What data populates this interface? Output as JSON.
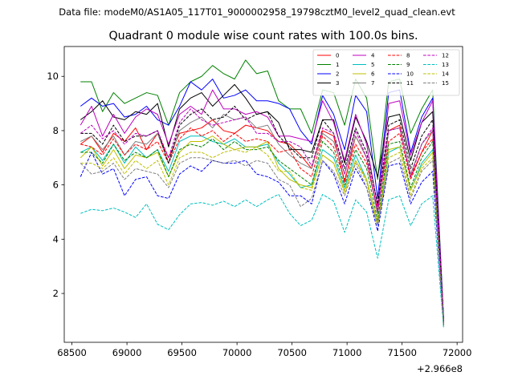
{
  "figure_suptitle": "Data file: modeM0/AS1A05_117T01_9000002958_19798cztM0_level2_quad_clean.evt",
  "chart_data": {
    "type": "line",
    "title": "Quadrant 0 module wise count rates with 100.0s bins.",
    "xlabel": "",
    "ylabel": "",
    "x_offset_label": "+2.966e8",
    "xlim": [
      68430,
      72050
    ],
    "ylim": [
      0.2,
      11.1
    ],
    "xticks": [
      68500,
      69000,
      69500,
      70000,
      70500,
      71000,
      71500,
      72000
    ],
    "yticks": [
      2,
      4,
      6,
      8,
      10
    ],
    "grid": false,
    "legend_position": "top-right",
    "legend_columns": 4,
    "x": [
      68578,
      68678,
      68778,
      68878,
      68978,
      69078,
      69178,
      69278,
      69378,
      69478,
      69578,
      69678,
      69778,
      69878,
      69978,
      70078,
      70178,
      70278,
      70378,
      70478,
      70578,
      70678,
      70778,
      70878,
      70978,
      71078,
      71178,
      71278,
      71378,
      71478,
      71578,
      71678,
      71778,
      71878
    ],
    "series": [
      {
        "name": "0",
        "color": "#ff0000",
        "dash": "solid",
        "values": [
          7.5,
          7.8,
          7.2,
          7.9,
          7.6,
          8.1,
          7.3,
          7.9,
          7.0,
          7.9,
          8.0,
          8.1,
          8.4,
          8.0,
          7.9,
          8.2,
          8.1,
          8.0,
          7.6,
          7.5,
          7.1,
          6.6,
          8.0,
          7.8,
          6.1,
          7.8,
          7.0,
          5.0,
          8.0,
          8.2,
          6.3,
          7.2,
          8.0,
          0.9
        ]
      },
      {
        "name": "1",
        "color": "#008000",
        "dash": "solid",
        "values": [
          9.8,
          9.8,
          8.7,
          9.4,
          9.0,
          9.2,
          9.4,
          9.3,
          8.2,
          9.4,
          9.8,
          10.0,
          10.4,
          10.1,
          9.9,
          10.6,
          10.1,
          10.2,
          9.1,
          8.8,
          8.8,
          7.9,
          9.5,
          9.4,
          8.2,
          9.9,
          9.2,
          6.2,
          9.8,
          9.9,
          7.9,
          8.8,
          9.5,
          1.0
        ]
      },
      {
        "name": "2",
        "color": "#0000ff",
        "dash": "solid",
        "values": [
          8.9,
          9.2,
          8.9,
          9.0,
          8.5,
          8.6,
          8.9,
          8.4,
          8.2,
          8.9,
          9.8,
          9.5,
          9.9,
          9.2,
          9.3,
          9.5,
          9.1,
          9.1,
          9.0,
          8.8,
          8.0,
          7.5,
          9.3,
          8.6,
          7.3,
          9.3,
          8.7,
          5.5,
          9.4,
          9.5,
          7.2,
          8.5,
          9.2,
          1.0
        ]
      },
      {
        "name": "3",
        "color": "#000000",
        "dash": "solid",
        "values": [
          8.4,
          8.7,
          9.1,
          8.5,
          8.4,
          8.7,
          8.6,
          9.0,
          7.4,
          8.8,
          9.2,
          9.4,
          8.9,
          9.3,
          9.7,
          9.2,
          8.6,
          8.7,
          8.3,
          7.3,
          7.3,
          7.2,
          8.4,
          8.4,
          6.8,
          8.5,
          7.6,
          6.3,
          8.5,
          8.6,
          6.9,
          8.3,
          8.7,
          1.0
        ]
      },
      {
        "name": "4",
        "color": "#bf00bf",
        "dash": "solid",
        "values": [
          8.2,
          8.9,
          7.8,
          8.6,
          7.9,
          8.5,
          8.8,
          8.6,
          7.5,
          8.6,
          8.9,
          8.6,
          9.5,
          8.8,
          8.8,
          8.6,
          8.7,
          8.5,
          7.8,
          7.8,
          7.7,
          7.6,
          9.1,
          8.3,
          6.9,
          8.6,
          7.5,
          5.2,
          9.0,
          9.1,
          7.1,
          8.3,
          9.1,
          0.9
        ]
      },
      {
        "name": "5",
        "color": "#00bfbf",
        "dash": "solid",
        "values": [
          7.2,
          7.4,
          6.9,
          7.5,
          6.8,
          7.4,
          7.0,
          7.3,
          6.5,
          7.6,
          7.8,
          7.8,
          7.6,
          7.5,
          7.7,
          7.4,
          7.4,
          7.5,
          6.8,
          6.4,
          5.9,
          6.0,
          7.3,
          7.0,
          5.9,
          7.1,
          6.2,
          4.5,
          7.2,
          7.4,
          5.8,
          6.8,
          7.3,
          0.8
        ]
      },
      {
        "name": "6",
        "color": "#bfbf00",
        "dash": "solid",
        "values": [
          7.0,
          7.4,
          6.7,
          7.3,
          6.6,
          7.1,
          7.0,
          7.2,
          6.3,
          7.2,
          7.6,
          7.6,
          7.8,
          7.5,
          7.3,
          7.4,
          7.4,
          7.6,
          6.6,
          6.2,
          6.0,
          5.9,
          7.1,
          6.8,
          5.8,
          6.9,
          6.2,
          4.6,
          7.3,
          7.4,
          5.8,
          6.7,
          7.2,
          0.8
        ]
      },
      {
        "name": "7",
        "color": "#808080",
        "dash": "solid",
        "values": [
          7.6,
          7.8,
          7.3,
          7.8,
          7.1,
          7.6,
          7.5,
          7.9,
          6.8,
          8.0,
          8.3,
          8.5,
          8.1,
          8.6,
          8.4,
          8.5,
          8.1,
          8.2,
          7.5,
          7.1,
          6.8,
          6.6,
          7.9,
          7.6,
          6.4,
          7.8,
          7.0,
          4.9,
          8.0,
          8.1,
          6.4,
          7.5,
          8.0,
          0.9
        ]
      },
      {
        "name": "8",
        "color": "#ff0000",
        "dash": "dashed",
        "values": [
          7.5,
          7.4,
          7.1,
          7.7,
          7.1,
          7.5,
          7.3,
          7.6,
          6.8,
          7.7,
          8.1,
          7.8,
          8.0,
          7.6,
          7.9,
          7.6,
          7.7,
          7.6,
          7.2,
          7.3,
          6.6,
          6.3,
          7.8,
          7.4,
          6.2,
          7.5,
          6.8,
          5.1,
          7.6,
          7.9,
          6.2,
          7.2,
          7.7,
          0.9
        ]
      },
      {
        "name": "9",
        "color": "#008000",
        "dash": "dashed",
        "values": [
          7.2,
          7.2,
          6.8,
          7.5,
          6.9,
          7.2,
          7.0,
          7.3,
          6.3,
          7.3,
          7.5,
          7.4,
          7.7,
          7.3,
          7.6,
          7.3,
          7.3,
          7.4,
          6.9,
          6.6,
          6.3,
          6.0,
          7.6,
          7.2,
          6.0,
          7.3,
          6.6,
          4.7,
          7.5,
          7.6,
          5.9,
          7.0,
          7.6,
          0.8
        ]
      },
      {
        "name": "10",
        "color": "#0000ff",
        "dash": "dashed",
        "values": [
          6.3,
          7.2,
          6.4,
          6.6,
          5.6,
          6.2,
          6.3,
          5.6,
          5.5,
          6.4,
          6.7,
          6.5,
          6.9,
          6.8,
          6.8,
          6.9,
          6.4,
          6.3,
          6.1,
          5.6,
          5.6,
          5.3,
          6.9,
          6.4,
          5.3,
          6.6,
          5.9,
          4.3,
          6.7,
          6.8,
          5.3,
          6.1,
          6.5,
          0.8
        ]
      },
      {
        "name": "11",
        "color": "#000000",
        "dash": "dashed",
        "values": [
          7.9,
          7.9,
          7.5,
          8.2,
          7.6,
          7.8,
          7.8,
          8.0,
          6.8,
          8.2,
          8.6,
          8.8,
          8.4,
          8.5,
          8.9,
          8.4,
          8.6,
          8.7,
          7.8,
          7.4,
          7.0,
          7.0,
          8.4,
          7.9,
          6.6,
          8.1,
          7.2,
          5.3,
          8.2,
          8.4,
          6.6,
          7.8,
          8.4,
          0.9
        ]
      },
      {
        "name": "12",
        "color": "#bf00bf",
        "dash": "dashed",
        "values": [
          7.9,
          8.2,
          7.7,
          8.0,
          7.5,
          7.9,
          7.8,
          8.0,
          7.0,
          8.3,
          8.8,
          8.4,
          8.2,
          8.3,
          8.4,
          8.5,
          7.9,
          7.9,
          7.6,
          7.6,
          7.4,
          6.7,
          8.1,
          7.9,
          6.4,
          8.0,
          7.0,
          5.0,
          8.0,
          8.1,
          6.3,
          7.5,
          8.1,
          0.9
        ]
      },
      {
        "name": "13",
        "color": "#00bfbf",
        "dash": "dashed",
        "values": [
          4.95,
          5.1,
          5.05,
          5.15,
          5.0,
          4.8,
          5.3,
          4.55,
          4.35,
          4.9,
          5.3,
          5.35,
          5.25,
          5.4,
          5.2,
          5.45,
          5.2,
          5.45,
          5.65,
          4.95,
          4.5,
          4.7,
          5.65,
          5.4,
          4.25,
          5.45,
          5.0,
          3.3,
          5.45,
          5.6,
          4.5,
          5.3,
          5.6,
          0.7
        ]
      },
      {
        "name": "14",
        "color": "#bfbf00",
        "dash": "dashed",
        "values": [
          6.8,
          6.8,
          6.6,
          7.0,
          6.4,
          6.9,
          6.6,
          6.9,
          6.0,
          7.0,
          7.2,
          7.2,
          7.0,
          7.2,
          7.3,
          7.2,
          7.4,
          7.1,
          6.5,
          6.5,
          5.9,
          5.8,
          7.1,
          6.8,
          5.7,
          6.9,
          6.1,
          4.5,
          7.0,
          7.2,
          5.6,
          6.6,
          7.0,
          0.8
        ]
      },
      {
        "name": "15",
        "color": "#808080",
        "dash": "dashed",
        "values": [
          6.8,
          6.4,
          6.5,
          6.8,
          6.2,
          6.6,
          6.5,
          6.4,
          5.9,
          6.8,
          7.0,
          7.0,
          6.9,
          6.8,
          6.9,
          6.7,
          6.9,
          6.8,
          6.2,
          6.0,
          5.2,
          5.5,
          6.9,
          6.5,
          5.6,
          6.8,
          5.9,
          4.5,
          6.8,
          7.0,
          5.5,
          6.5,
          6.9,
          0.8
        ]
      }
    ]
  }
}
